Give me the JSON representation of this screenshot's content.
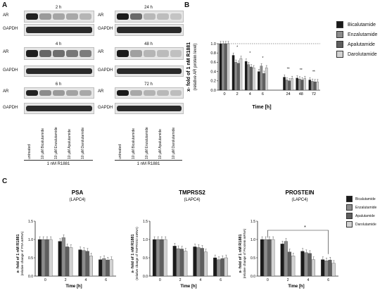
{
  "panels": {
    "a": "A",
    "b": "B",
    "c": "C"
  },
  "blots": {
    "row_labels": {
      "ar": "AR",
      "gapdh": "GAPDH"
    },
    "times_left": [
      "2 h",
      "4 h",
      "6 h"
    ],
    "times_right": [
      "24 h",
      "48 h",
      "72 h"
    ],
    "lanes_left": [
      "untreated",
      "10 µM Bicalutamide",
      "10 µM Enzalutamide",
      "10 µM Apalutamide",
      "10 µM Darolutamide"
    ],
    "lanes_right": [
      "untreated",
      "10 µM Bicalutamide",
      "10 µM Enzalutamide",
      "10 µM Apalutamide",
      "10 µM Darolutamide"
    ],
    "treatment_left": "1 nM R1881",
    "treatment_right": "1 nM R1881"
  },
  "colors": {
    "bicalutamide": "#1a1a1a",
    "enzalutamide": "#8c8c8c",
    "apalutamide": "#5e5e5e",
    "darolutamide": "#d2d2d2"
  },
  "legend": {
    "series": [
      "Bicalutamide",
      "Enzalutamide",
      "Apalutamide",
      "Darolutamide"
    ]
  },
  "chart_data": [
    {
      "type": "bar",
      "panel": "B",
      "title": "",
      "xlabel": "Time [h]",
      "ylabel": "x- fold of 1 nM R1881",
      "ylabel2": "(relative AR protein level)",
      "categories": [
        "0",
        "2",
        "4",
        "6",
        "24",
        "48",
        "72"
      ],
      "ylim": [
        0.0,
        1.0
      ],
      "yticks": [
        "0.0",
        "0.2",
        "0.4",
        "0.6",
        "0.8",
        "1.0"
      ],
      "reference_line": 1.0,
      "significance": [
        "",
        "*",
        "*",
        "*",
        "**",
        "**",
        "**"
      ],
      "series": [
        {
          "name": "Bicalutamide",
          "values": [
            1.0,
            0.75,
            0.62,
            0.4,
            0.28,
            0.26,
            0.22
          ]
        },
        {
          "name": "Enzalutamide",
          "values": [
            1.0,
            0.6,
            0.55,
            0.52,
            0.22,
            0.24,
            0.19
          ]
        },
        {
          "name": "Apalutamide",
          "values": [
            1.0,
            0.58,
            0.5,
            0.36,
            0.2,
            0.22,
            0.18
          ]
        },
        {
          "name": "Darolutamide",
          "values": [
            1.0,
            0.68,
            0.48,
            0.48,
            0.25,
            0.25,
            0.18
          ]
        }
      ]
    },
    {
      "type": "bar",
      "panel": "C1",
      "title": "PSA",
      "subtitle": "(LAPC4)",
      "xlabel": "Time [h]",
      "ylabel": "x- fold of 1 nM R1881",
      "ylabel2": "(relative change of PSA mRNA)",
      "categories": [
        "0",
        "2",
        "4",
        "6"
      ],
      "ylim": [
        0.0,
        1.5
      ],
      "yticks": [
        "0.0",
        "0.5",
        "1.0",
        "1.5"
      ],
      "series": [
        {
          "name": "Bicalutamide",
          "values": [
            1.0,
            0.95,
            0.72,
            0.45
          ]
        },
        {
          "name": "Enzalutamide",
          "values": [
            1.0,
            1.05,
            0.7,
            0.48
          ]
        },
        {
          "name": "Apalutamide",
          "values": [
            1.0,
            0.8,
            0.68,
            0.44
          ]
        },
        {
          "name": "Darolutamide",
          "values": [
            1.0,
            0.78,
            0.55,
            0.45
          ]
        }
      ]
    },
    {
      "type": "bar",
      "panel": "C2",
      "title": "TMPRSS2",
      "subtitle": "(LAPC4)",
      "xlabel": "Time [h]",
      "ylabel": "x- fold of 1 nM R1881",
      "ylabel2": "(relative change of TMPRSS2 mRNA)",
      "categories": [
        "0",
        "2",
        "4",
        "6"
      ],
      "ylim": [
        0.0,
        1.5
      ],
      "yticks": [
        "0.0",
        "0.5",
        "1.0",
        "1.5"
      ],
      "series": [
        {
          "name": "Bicalutamide",
          "values": [
            1.0,
            0.82,
            0.8,
            0.5
          ]
        },
        {
          "name": "Enzalutamide",
          "values": [
            1.0,
            0.75,
            0.78,
            0.45
          ]
        },
        {
          "name": "Apalutamide",
          "values": [
            1.0,
            0.74,
            0.76,
            0.48
          ]
        },
        {
          "name": "Darolutamide",
          "values": [
            1.0,
            0.68,
            0.66,
            0.5
          ]
        }
      ]
    },
    {
      "type": "bar",
      "panel": "C3",
      "title": "PROSTEIN",
      "subtitle": "(LAPC4)",
      "xlabel": "Time [h]",
      "ylabel": "x- fold of 1 nM R1881",
      "ylabel2": "(relative change of Prostein mRNA)",
      "categories": [
        "0",
        "2",
        "4",
        "6"
      ],
      "ylim": [
        0.0,
        1.5
      ],
      "yticks": [
        "0.0",
        "0.5",
        "1.0",
        "1.5"
      ],
      "significance_bracket": {
        "from": "0",
        "to": "6",
        "label": "*"
      },
      "series": [
        {
          "name": "Bicalutamide",
          "values": [
            1.0,
            0.88,
            0.68,
            0.45
          ]
        },
        {
          "name": "Enzalutamide",
          "values": [
            1.0,
            0.95,
            0.64,
            0.42
          ]
        },
        {
          "name": "Apalutamide",
          "values": [
            1.0,
            0.66,
            0.62,
            0.44
          ]
        },
        {
          "name": "Darolutamide",
          "values": [
            1.0,
            0.55,
            0.45,
            0.35
          ]
        }
      ]
    }
  ]
}
